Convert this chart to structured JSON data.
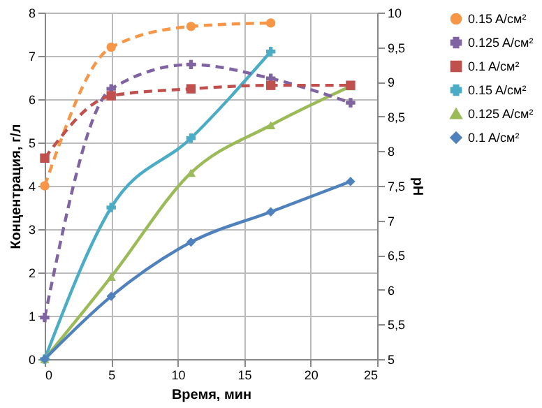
{
  "chart_data": {
    "type": "line",
    "xlabel": "Время, мин",
    "ylabel": "Концентрация, г/л",
    "y2label": "pH",
    "xlim": [
      0,
      25
    ],
    "xticks": [
      0,
      5,
      10,
      15,
      20,
      25
    ],
    "ylim": [
      0,
      8
    ],
    "yticks": [
      0,
      1,
      2,
      3,
      4,
      5,
      6,
      7,
      8
    ],
    "y2lim": [
      5,
      10
    ],
    "y2ticks": [
      5,
      {
        "value": 5.5,
        "label": "5,5"
      },
      6,
      {
        "value": 6.5,
        "label": "6,5"
      },
      7,
      {
        "value": 7.5,
        "label": "7,5"
      },
      8,
      {
        "value": 8.5,
        "label": "8,5"
      },
      9,
      {
        "value": 9.5,
        "label": "9,5"
      },
      10
    ],
    "grid": true,
    "legend": "right",
    "series": [
      {
        "name": "0.15 A/см²",
        "color": "#f79646",
        "axis": "y2",
        "line_style": "dashed",
        "marker": "circle",
        "x": [
          0,
          5,
          11,
          17
        ],
        "values": [
          7.5,
          9.5,
          9.8,
          9.85
        ]
      },
      {
        "name": "0.125 A/см²",
        "color": "#8064a2",
        "axis": "y2",
        "line_style": "dashed",
        "marker": "cross",
        "x": [
          0,
          5,
          11,
          17,
          23
        ],
        "values": [
          5.6,
          8.9,
          9.25,
          9.05,
          8.7
        ]
      },
      {
        "name": "0.1 A/см²",
        "color": "#c0504d",
        "axis": "y2",
        "line_style": "dashed",
        "marker": "square",
        "x": [
          0,
          5,
          11,
          17,
          23
        ],
        "values": [
          7.9,
          8.8,
          8.9,
          8.95,
          8.95
        ]
      },
      {
        "name": "0.15 A/см²",
        "color": "#4bacc6",
        "line_style": "solid",
        "marker": "cross",
        "x": [
          0,
          5,
          11,
          17
        ],
        "values": [
          0,
          3.5,
          5.1,
          7.1
        ]
      },
      {
        "name": "0.125 A/см²",
        "color": "#9bbb59",
        "line_style": "solid",
        "marker": "triangle",
        "x": [
          0,
          5,
          11,
          17,
          23
        ],
        "values": [
          0,
          1.9,
          4.3,
          5.4,
          6.3
        ]
      },
      {
        "name": "0.1 A/см²",
        "color": "#4f81bd",
        "line_style": "solid",
        "marker": "diamond",
        "x": [
          0,
          5,
          11,
          17,
          23
        ],
        "values": [
          0,
          1.45,
          2.7,
          3.4,
          4.1
        ]
      }
    ]
  }
}
